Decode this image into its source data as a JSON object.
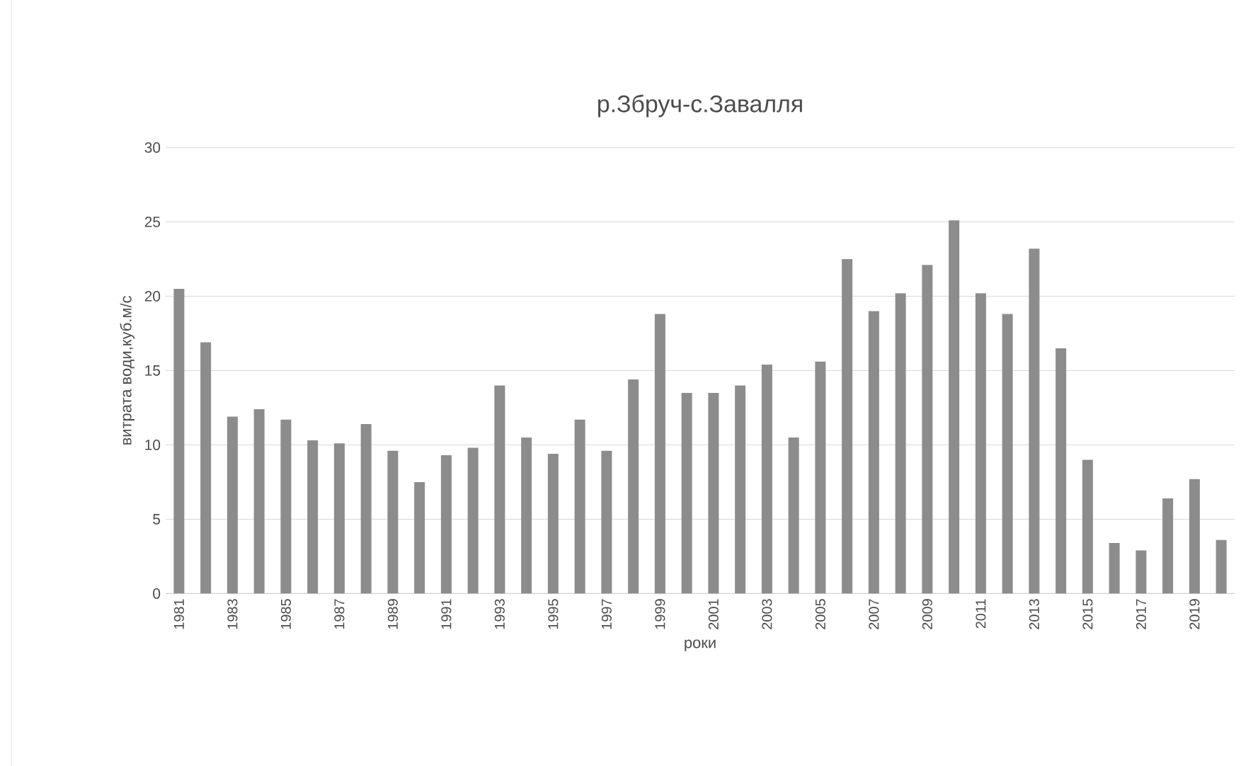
{
  "chart_data": {
    "type": "bar",
    "title": "р.Збруч-с.Завалля",
    "xlabel": "роки",
    "ylabel": "витрата води,куб.м/с",
    "categories": [
      "1981",
      null,
      "1983",
      null,
      "1985",
      null,
      "1987",
      null,
      "1989",
      null,
      "1991",
      null,
      "1993",
      null,
      "1995",
      null,
      "1997",
      null,
      "1999",
      null,
      "2001",
      null,
      "2003",
      null,
      "2005",
      null,
      "2007",
      null,
      "2009",
      null,
      "2011",
      null,
      "2013",
      null,
      "2015",
      null,
      "2017",
      null,
      "2019",
      null
    ],
    "values": [
      20.5,
      16.9,
      11.9,
      12.4,
      11.7,
      10.3,
      10.1,
      11.4,
      9.6,
      7.5,
      9.3,
      9.8,
      14.0,
      10.5,
      9.4,
      11.7,
      9.6,
      14.4,
      18.8,
      13.5,
      13.5,
      14.0,
      15.4,
      10.5,
      15.6,
      22.5,
      19.0,
      20.2,
      22.1,
      25.1,
      20.2,
      18.8,
      23.2,
      16.5,
      9.0,
      3.4,
      2.9,
      6.4,
      7.7,
      3.6
    ],
    "color": "#8c8c8c",
    "ylim": [
      0,
      30
    ],
    "yticks": [
      0,
      5,
      10,
      15,
      20,
      25,
      30
    ],
    "grid": "y"
  }
}
